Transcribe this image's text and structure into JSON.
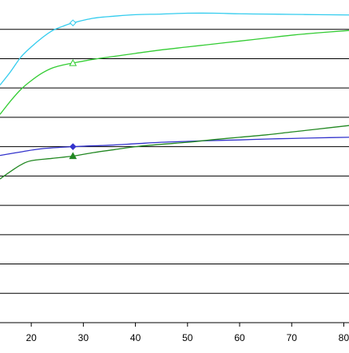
{
  "chart_data": {
    "type": "line",
    "x_ticks": [
      10,
      20,
      30,
      40,
      50,
      60,
      70,
      80
    ],
    "x_tick_labels": [
      "",
      "20",
      "30",
      "40",
      "50",
      "60",
      "70",
      "80"
    ],
    "xlim": [
      14,
      81
    ],
    "ylim": [
      0,
      11
    ],
    "horizontal_gridlines": 10,
    "grid": true,
    "legend": "none",
    "series": [
      {
        "color": "#33ccee",
        "marker": "open-diamond",
        "marker_x": 28,
        "points": [
          [
            14,
            8.1
          ],
          [
            16,
            8.55
          ],
          [
            18,
            9.05
          ],
          [
            20,
            9.4
          ],
          [
            22,
            9.7
          ],
          [
            24,
            9.95
          ],
          [
            26,
            10.1
          ],
          [
            28,
            10.22
          ],
          [
            32,
            10.38
          ],
          [
            36,
            10.45
          ],
          [
            40,
            10.5
          ],
          [
            45,
            10.52
          ],
          [
            50,
            10.55
          ],
          [
            55,
            10.55
          ],
          [
            60,
            10.53
          ],
          [
            65,
            10.52
          ],
          [
            70,
            10.51
          ],
          [
            75,
            10.5
          ],
          [
            81,
            10.49
          ]
        ]
      },
      {
        "color": "#33cc33",
        "marker": "open-triangle",
        "marker_x": 28,
        "points": [
          [
            14,
            7.1
          ],
          [
            16,
            7.55
          ],
          [
            18,
            7.95
          ],
          [
            20,
            8.25
          ],
          [
            22,
            8.5
          ],
          [
            24,
            8.68
          ],
          [
            26,
            8.78
          ],
          [
            28,
            8.85
          ],
          [
            32,
            8.98
          ],
          [
            36,
            9.08
          ],
          [
            40,
            9.18
          ],
          [
            45,
            9.3
          ],
          [
            50,
            9.4
          ],
          [
            55,
            9.5
          ],
          [
            60,
            9.6
          ],
          [
            65,
            9.7
          ],
          [
            70,
            9.8
          ],
          [
            75,
            9.88
          ],
          [
            81,
            9.96
          ]
        ]
      },
      {
        "color": "#3333cc",
        "marker": "filled-diamond",
        "marker_x": 28,
        "points": [
          [
            14,
            5.7
          ],
          [
            18,
            5.82
          ],
          [
            22,
            5.93
          ],
          [
            28,
            6.0
          ],
          [
            35,
            6.05
          ],
          [
            40,
            6.1
          ],
          [
            45,
            6.15
          ],
          [
            50,
            6.18
          ],
          [
            55,
            6.21
          ],
          [
            60,
            6.23
          ],
          [
            65,
            6.26
          ],
          [
            70,
            6.28
          ],
          [
            75,
            6.3
          ],
          [
            81,
            6.32
          ]
        ]
      },
      {
        "color": "#228822",
        "marker": "filled-triangle",
        "marker_x": 28,
        "points": [
          [
            14,
            4.9
          ],
          [
            16,
            5.15
          ],
          [
            18,
            5.38
          ],
          [
            20,
            5.52
          ],
          [
            24,
            5.6
          ],
          [
            28,
            5.68
          ],
          [
            32,
            5.8
          ],
          [
            36,
            5.9
          ],
          [
            40,
            6.0
          ],
          [
            45,
            6.08
          ],
          [
            50,
            6.15
          ],
          [
            55,
            6.24
          ],
          [
            60,
            6.32
          ],
          [
            65,
            6.4
          ],
          [
            70,
            6.5
          ],
          [
            75,
            6.6
          ],
          [
            81,
            6.72
          ]
        ]
      }
    ]
  }
}
